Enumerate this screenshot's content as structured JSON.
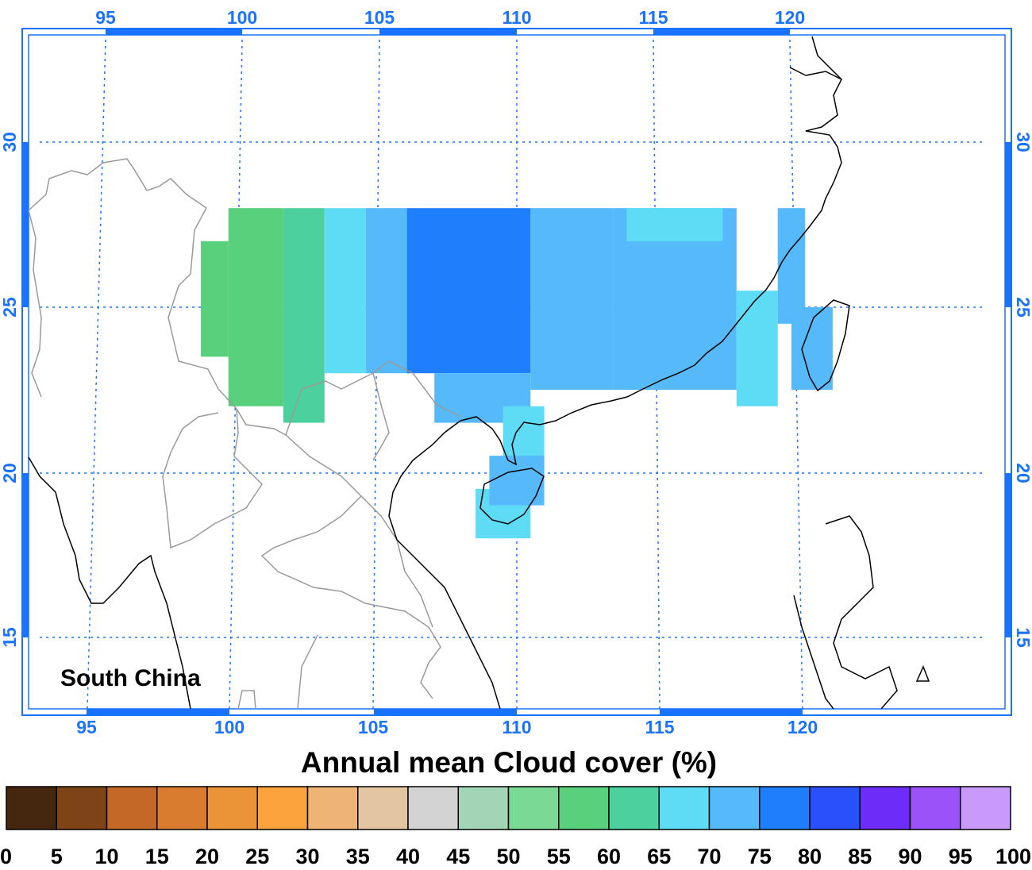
{
  "region_label": "South China",
  "title": "Annual mean Cloud cover (%)",
  "top_lon_ticks": [
    "95",
    "100",
    "105",
    "110",
    "115",
    "120"
  ],
  "bottom_lon_ticks": [
    "95",
    "100",
    "105",
    "110",
    "115",
    "120"
  ],
  "lat_ticks": [
    "30",
    "25",
    "20",
    "15"
  ],
  "colorbar": {
    "labels": [
      "0",
      "5",
      "10",
      "15",
      "20",
      "25",
      "30",
      "35",
      "40",
      "45",
      "50",
      "55",
      "60",
      "65",
      "70",
      "75",
      "80",
      "85",
      "90",
      "95",
      "100"
    ],
    "colors": [
      "#45260e",
      "#7e4417",
      "#c36826",
      "#d97c2f",
      "#eb9437",
      "#fca33d",
      "#eeb476",
      "#e3c5a2",
      "#d3d3d3",
      "#a2d5b5",
      "#7bd996",
      "#58d07c",
      "#4cd19e",
      "#5fdcf5",
      "#55b9fa",
      "#1f7efb",
      "#2950fa",
      "#6e2cf8",
      "#9c52f9",
      "#c99af9"
    ]
  },
  "chart_data": {
    "type": "heatmap",
    "variable": "Annual mean Cloud cover (%)",
    "units": "%",
    "region": "South China",
    "grid_on": true,
    "lon_range": [
      93,
      127
    ],
    "lat_range": [
      13,
      32.5
    ],
    "value_bins_colorbar": [
      0,
      5,
      10,
      15,
      20,
      25,
      30,
      35,
      40,
      45,
      50,
      55,
      60,
      65,
      70,
      75,
      80,
      85,
      90,
      95,
      100
    ],
    "cells": [
      {
        "lon": [
          99.5,
          101.5
        ],
        "lat": [
          22.0,
          28.0
        ],
        "value": 57
      },
      {
        "lon": [
          98.5,
          99.5
        ],
        "lat": [
          23.5,
          27.0
        ],
        "value": 57
      },
      {
        "lon": [
          101.5,
          103.0
        ],
        "lat": [
          21.5,
          28.0
        ],
        "value": 60
      },
      {
        "lon": [
          103.0,
          104.5
        ],
        "lat": [
          23.0,
          28.0
        ],
        "value": 66
      },
      {
        "lon": [
          104.5,
          106.0
        ],
        "lat": [
          23.0,
          28.0
        ],
        "value": 72
      },
      {
        "lon": [
          106.0,
          110.5
        ],
        "lat": [
          23.0,
          28.0
        ],
        "value": 77
      },
      {
        "lon": [
          110.5,
          113.5
        ],
        "lat": [
          22.5,
          28.0
        ],
        "value": 72
      },
      {
        "lon": [
          113.5,
          118.0
        ],
        "lat": [
          22.5,
          28.0
        ],
        "value": 72
      },
      {
        "lon": [
          107.0,
          110.5
        ],
        "lat": [
          21.5,
          23.0
        ],
        "value": 72
      },
      {
        "lon": [
          114.0,
          117.5
        ],
        "lat": [
          27.0,
          28.0
        ],
        "value": 67
      },
      {
        "lon": [
          118.0,
          119.5
        ],
        "lat": [
          22.0,
          25.5
        ],
        "value": 67
      },
      {
        "lon": [
          119.5,
          120.5
        ],
        "lat": [
          24.5,
          28.0
        ],
        "value": 72
      },
      {
        "lon": [
          120.0,
          121.5
        ],
        "lat": [
          22.5,
          25.0
        ],
        "value": 72
      },
      {
        "lon": [
          109.5,
          111.0
        ],
        "lat": [
          20.0,
          22.0
        ],
        "value": 67
      },
      {
        "lon": [
          108.5,
          110.5
        ],
        "lat": [
          18.0,
          19.5
        ],
        "value": 67
      },
      {
        "lon": [
          109.0,
          111.0
        ],
        "lat": [
          19.0,
          20.5
        ],
        "value": 72
      }
    ]
  }
}
